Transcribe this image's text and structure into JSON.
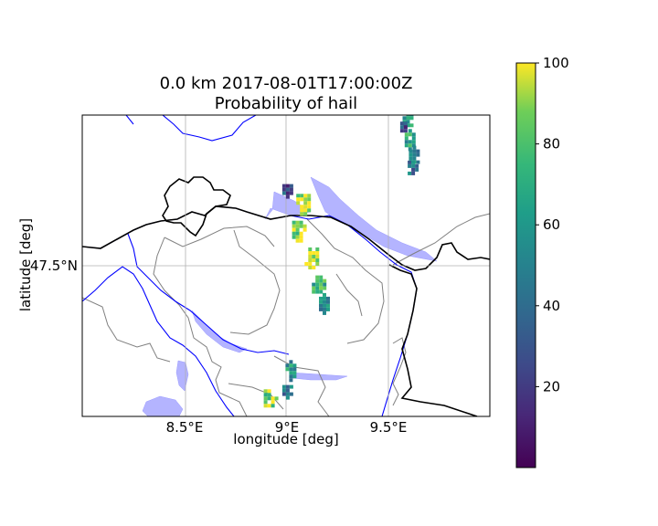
{
  "figure": {
    "title_line1": "0.0 km 2017-08-01T17:00:00Z",
    "title_line2": "Probability of hail",
    "xlabel": "longitude [deg]",
    "ylabel": "latitude [deg]"
  },
  "map": {
    "extent": {
      "lon": [
        8.0,
        9.95
      ],
      "lat": [
        47.13,
        47.58
      ]
    },
    "x_ticks": [
      {
        "value": 8.5,
        "label": "8.5°E"
      },
      {
        "value": 9.0,
        "label": "9°E"
      },
      {
        "value": 9.5,
        "label": "9.5°E"
      }
    ],
    "y_ticks": [
      {
        "value": 47.5,
        "label": "47.5°N"
      }
    ],
    "grid": true,
    "colors": {
      "country_border": "#000000",
      "rivers": "#0000ff",
      "lakes_fill": "#b4b4ff",
      "cantons": "#808080"
    },
    "colormap": "viridis"
  },
  "chart_data": {
    "type": "heatmap",
    "title": "0.0 km 2017-08-01T17:00:00Z\nProbability of hail",
    "xlabel": "longitude [deg]",
    "ylabel": "latitude [deg]",
    "colorbar": {
      "min": 0,
      "max": 100,
      "ticks": [
        20,
        40,
        60,
        80,
        100
      ]
    },
    "cells": [
      {
        "lon": 9.55,
        "lat": 47.575,
        "value": 60
      },
      {
        "lon": 9.53,
        "lat": 47.565,
        "value": 25
      },
      {
        "lon": 9.56,
        "lat": 47.545,
        "value": 65
      },
      {
        "lon": 9.58,
        "lat": 47.52,
        "value": 55
      },
      {
        "lon": 9.57,
        "lat": 47.505,
        "value": 45
      },
      {
        "lon": 8.97,
        "lat": 47.47,
        "value": 30
      },
      {
        "lon": 9.05,
        "lat": 47.45,
        "value": 95
      },
      {
        "lon": 9.03,
        "lat": 47.41,
        "value": 90
      },
      {
        "lon": 9.09,
        "lat": 47.37,
        "value": 98
      },
      {
        "lon": 9.12,
        "lat": 47.33,
        "value": 70
      },
      {
        "lon": 9.15,
        "lat": 47.3,
        "value": 55
      },
      {
        "lon": 8.99,
        "lat": 47.2,
        "value": 60
      },
      {
        "lon": 8.97,
        "lat": 47.17,
        "value": 45
      },
      {
        "lon": 8.89,
        "lat": 47.16,
        "value": 85
      }
    ]
  }
}
